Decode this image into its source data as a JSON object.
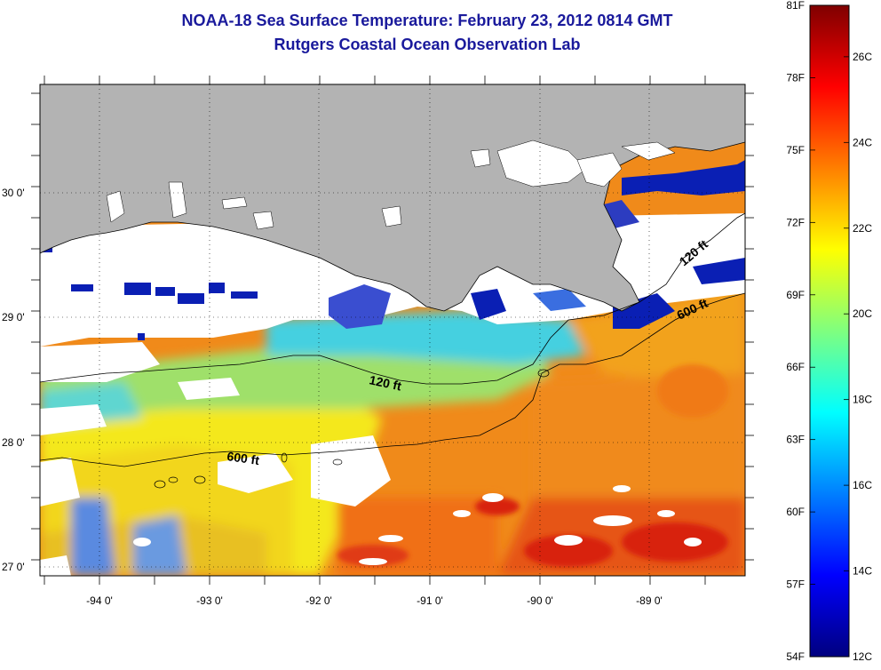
{
  "title": {
    "line1": "NOAA-18 Sea Surface Temperature:  February 23, 2012 0814 GMT",
    "line2": "Rutgers Coastal Ocean Observation Lab"
  },
  "map": {
    "lat_labels": [
      "30 0'",
      "29 0'",
      "28 0'",
      "27 0'"
    ],
    "lon_labels": [
      "-94 0'",
      "-93 0'",
      "-92 0'",
      "-91 0'",
      "-90 0'",
      "-89 0'"
    ],
    "contour_labels": [
      "120 ft",
      "600 ft",
      "120 ft",
      "600 ft"
    ],
    "colors": {
      "land": "#b3b3b3",
      "cloud": "#ffffff",
      "cold": "#0a1fb4",
      "cyan": "#3fc9e0",
      "yellow": "#f4e81c",
      "orange": "#f08a1a",
      "red": "#d82010"
    }
  },
  "colorbar": {
    "fahrenheit_labels": [
      "81F",
      "78F",
      "75F",
      "72F",
      "69F",
      "66F",
      "63F",
      "60F",
      "57F",
      "54F"
    ],
    "celsius_labels": [
      "26C",
      "24C",
      "22C",
      "20C",
      "18C",
      "16C",
      "14C",
      "12C"
    ],
    "range_f": [
      54,
      81
    ],
    "range_c": [
      12,
      27.2
    ],
    "stops": [
      "#00007f",
      "#0000ff",
      "#007fff",
      "#00ffff",
      "#7fff7f",
      "#ffff00",
      "#ff7f00",
      "#ff0000",
      "#7f0000"
    ]
  }
}
